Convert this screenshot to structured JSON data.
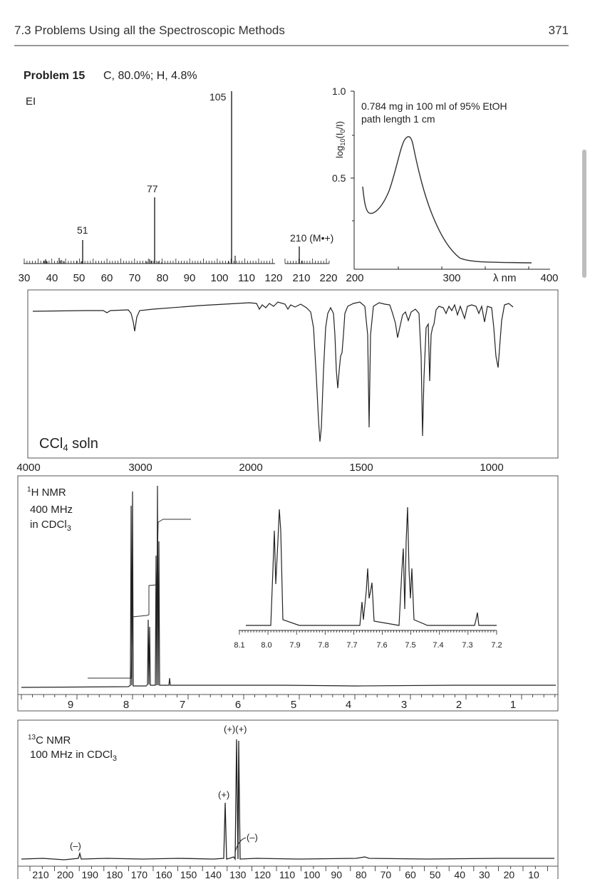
{
  "header": {
    "section_title": "7.3   Problems Using all the Spectroscopic Methods",
    "page_number": "371"
  },
  "problem": {
    "label": "Problem 15",
    "formula": "C, 80.0%; H, 4.8%"
  },
  "ms": {
    "mode": "EI",
    "x_ticks": [
      "30",
      "40",
      "50",
      "60",
      "70",
      "80",
      "90",
      "100",
      "110",
      "120",
      "210",
      "220"
    ],
    "peak_labels": {
      "p51": "51",
      "p77": "77",
      "p105": "105",
      "p210": "210 (M•+)"
    }
  },
  "uv": {
    "ylabel_main": "log",
    "ylabel_sub": "10",
    "ylabel_mid": "(I",
    "ylabel_sub2": "0",
    "ylabel_end": "/I)",
    "y_ticks": [
      "1.0",
      "0.5"
    ],
    "x_ticks": [
      "200",
      "300",
      "400"
    ],
    "x_unit": "λ nm",
    "note_line1": "0.784 mg in 100 ml of 95% EtOH",
    "note_line2": "path length 1 cm"
  },
  "ir": {
    "solvent_label_pre": "CCl",
    "solvent_label_sub": "4",
    "solvent_label_post": " soln",
    "x_ticks": [
      "4000",
      "3000",
      "2000",
      "1500",
      "1000"
    ]
  },
  "h_nmr": {
    "label_line1_sup": "1",
    "label_line1": "H NMR",
    "label_line2": "400 MHz",
    "label_line3_pre": "in CDCl",
    "label_line3_sub": "3",
    "x_ticks": [
      "9",
      "8",
      "7",
      "6",
      "5",
      "4",
      "3",
      "2",
      "1"
    ],
    "inset_ticks": [
      "8.1",
      "8.0",
      "7.9",
      "7.8",
      "7.7",
      "7.6",
      "7.5",
      "7.4",
      "7.3",
      "7.2"
    ]
  },
  "c_nmr": {
    "label_line1_sup": "13",
    "label_line1": "C NMR",
    "label_line2_pre": "100 MHz in CDCl",
    "label_line2_sub": "3",
    "annotations": {
      "pair_plus": "(+)(+)",
      "plus": "(+)",
      "minus_right": "(–)",
      "minus_left": "(–)"
    },
    "x_ticks": [
      "210",
      "200",
      "190",
      "180",
      "170",
      "160",
      "150",
      "140",
      "130",
      "120",
      "110",
      "100",
      "90",
      "80",
      "70",
      "60",
      "50",
      "40",
      "30",
      "20",
      "10"
    ]
  },
  "colors": {
    "ink": "#222222",
    "rule": "#999999",
    "frame": "#555555"
  }
}
